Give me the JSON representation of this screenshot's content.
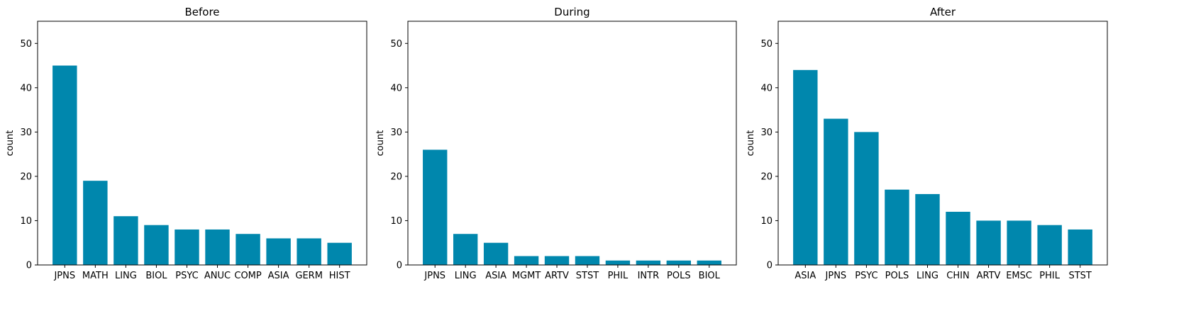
{
  "bar_color": "#0087ad",
  "chart_data": [
    {
      "type": "bar",
      "title": "Before",
      "xlabel": "",
      "ylabel": "count",
      "ylim": [
        0,
        55
      ],
      "yticks": [
        0,
        10,
        20,
        30,
        40,
        50
      ],
      "categories": [
        "JPNS",
        "MATH",
        "LING",
        "BIOL",
        "PSYC",
        "ANUC",
        "COMP",
        "ASIA",
        "GERM",
        "HIST"
      ],
      "values": [
        45,
        19,
        11,
        9,
        8,
        8,
        7,
        6,
        6,
        5
      ]
    },
    {
      "type": "bar",
      "title": "During",
      "xlabel": "",
      "ylabel": "count",
      "ylim": [
        0,
        55
      ],
      "yticks": [
        0,
        10,
        20,
        30,
        40,
        50
      ],
      "categories": [
        "JPNS",
        "LING",
        "ASIA",
        "MGMT",
        "ARTV",
        "STST",
        "PHIL",
        "INTR",
        "POLS",
        "BIOL"
      ],
      "values": [
        26,
        7,
        5,
        2,
        2,
        2,
        1,
        1,
        1,
        1
      ]
    },
    {
      "type": "bar",
      "title": "After",
      "xlabel": "",
      "ylabel": "count",
      "ylim": [
        0,
        55
      ],
      "yticks": [
        0,
        10,
        20,
        30,
        40,
        50
      ],
      "categories": [
        "ASIA",
        "JPNS",
        "PSYC",
        "POLS",
        "LING",
        "CHIN",
        "ARTV",
        "EMSC",
        "PHIL",
        "STST"
      ],
      "values": [
        44,
        33,
        30,
        17,
        16,
        12,
        10,
        10,
        9,
        8
      ]
    }
  ]
}
